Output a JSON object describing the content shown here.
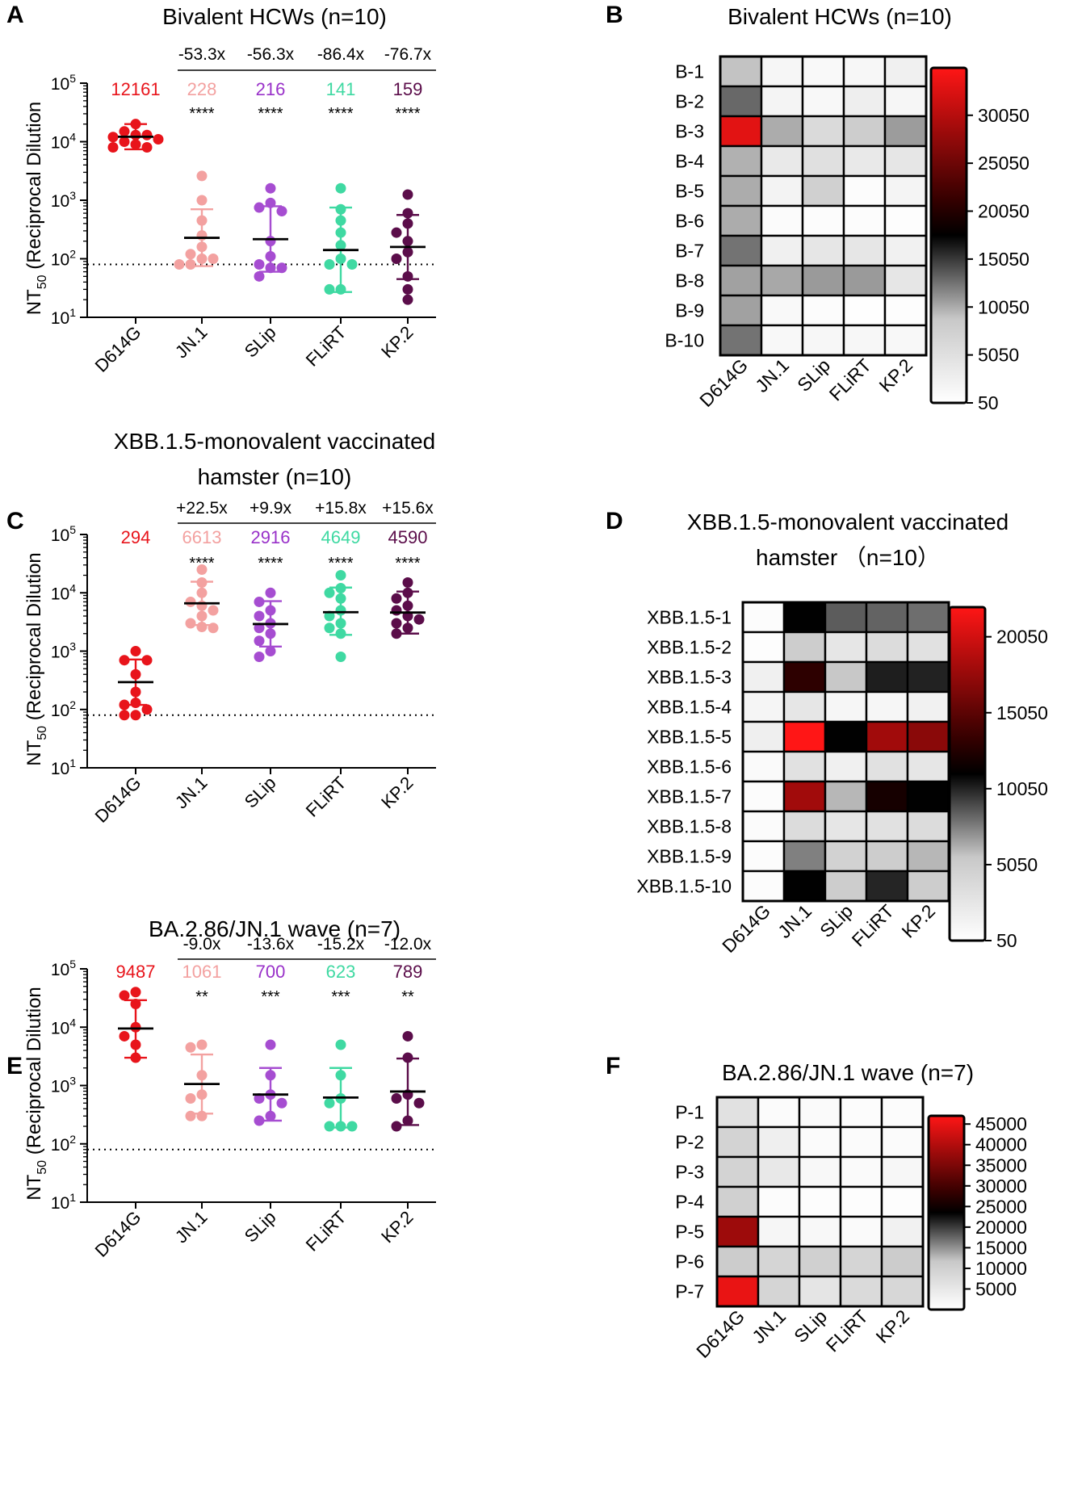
{
  "chart_data": [
    {
      "panel": "A",
      "type": "scatter",
      "title": "Bivalent HCWs (n=10)",
      "ylabel_main": "NT",
      "ylabel_sub": "50",
      "ylabel_rest": " (Reciprocal Dilution",
      "yscale": "log10",
      "ylim": [
        10,
        100000
      ],
      "ytick_exponents": [
        "1",
        "2",
        "3",
        "4",
        "5"
      ],
      "ytick_base": "10",
      "limit_of_detection": 80,
      "categories": [
        "D614G",
        "JN.1",
        "SLip",
        "FLiRT",
        "KP.2"
      ],
      "colors": [
        "#e8141b",
        "#f3a1a0",
        "#a64dd1",
        "#3fd9a2",
        "#5b0d4a"
      ],
      "label_colors": [
        "#e8141b",
        "#f3a1a0",
        "#9931c9",
        "#3fd9a2",
        "#5b0d4a"
      ],
      "gmt_labels": [
        "12161",
        "228",
        "216",
        "141",
        "159"
      ],
      "significance": [
        "",
        "****",
        "****",
        "****",
        "****"
      ],
      "fold_changes": [
        "-53.3x",
        "-56.3x",
        "-86.4x",
        "-76.7x"
      ],
      "gmt": [
        12161,
        228,
        216,
        141,
        159
      ],
      "error_low": [
        7400,
        75,
        60,
        27,
        45
      ],
      "error_high": [
        20000,
        700,
        790,
        750,
        560
      ],
      "values": [
        [
          20000,
          15000,
          13000,
          13000,
          12000,
          11000,
          10000,
          9000,
          8000,
          8000
        ],
        [
          2600,
          1000,
          450,
          250,
          160,
          120,
          100,
          100,
          80,
          80
        ],
        [
          1600,
          900,
          750,
          650,
          200,
          110,
          80,
          70,
          70,
          50
        ],
        [
          1600,
          700,
          450,
          280,
          170,
          100,
          80,
          80,
          30,
          30
        ],
        [
          1250,
          600,
          400,
          280,
          200,
          130,
          100,
          50,
          30,
          20
        ]
      ]
    },
    {
      "panel": "B",
      "type": "heatmap",
      "title": "Bivalent HCWs (n=10)",
      "rows": [
        "B-1",
        "B-2",
        "B-3",
        "B-4",
        "B-5",
        "B-6",
        "B-7",
        "B-8",
        "B-9",
        "B-10"
      ],
      "columns": [
        "D614G",
        "JN.1",
        "SLip",
        "FLiRT",
        "KP.2"
      ],
      "colorbar_ticks": [
        "30050",
        "25050",
        "20050",
        "15050",
        "10050",
        "5050",
        "50"
      ],
      "colorbar_tick_values": [
        30050,
        25050,
        20050,
        15050,
        10050,
        5050,
        50
      ],
      "colorbar_range": [
        50,
        35000
      ],
      "cell_values": [
        [
          9000,
          1500,
          1000,
          1400,
          2500
        ],
        [
          13000,
          1800,
          1200,
          2700,
          1500
        ],
        [
          33000,
          10000,
          6000,
          8000,
          10700
        ],
        [
          9800,
          3500,
          5000,
          3500,
          4000
        ],
        [
          10000,
          2000,
          7500,
          500,
          1800
        ],
        [
          10000,
          700,
          600,
          500,
          300
        ],
        [
          12500,
          2500,
          4000,
          4000,
          2200
        ],
        [
          10500,
          10200,
          10800,
          10800,
          4000
        ],
        [
          10500,
          1000,
          500,
          200,
          300
        ],
        [
          12500,
          1200,
          1300,
          1300,
          1100
        ]
      ]
    },
    {
      "panel": "C",
      "type": "scatter",
      "title_line1": "XBB.1.5-monovalent vaccinated",
      "title_line2": "hamster (n=10)",
      "ylabel_main": "NT",
      "ylabel_sub": "50",
      "ylabel_rest": " (Reciprocal Dilution",
      "yscale": "log10",
      "ylim": [
        10,
        100000
      ],
      "ytick_exponents": [
        "1",
        "2",
        "3",
        "4",
        "5"
      ],
      "ytick_base": "10",
      "limit_of_detection": 80,
      "categories": [
        "D614G",
        "JN.1",
        "SLip",
        "FLiRT",
        "KP.2"
      ],
      "colors": [
        "#e8141b",
        "#f3a1a0",
        "#a64dd1",
        "#3fd9a2",
        "#5b0d4a"
      ],
      "label_colors": [
        "#e8141b",
        "#f3a1a0",
        "#9931c9",
        "#3fd9a2",
        "#5b0d4a"
      ],
      "gmt_labels": [
        "294",
        "6613",
        "2916",
        "4649",
        "4590"
      ],
      "significance": [
        "",
        "****",
        "****",
        "****",
        "****"
      ],
      "fold_changes": [
        "+22.5x",
        "+9.9x",
        "+15.8x",
        "+15.6x"
      ],
      "gmt": [
        294,
        6613,
        2916,
        4649,
        4590
      ],
      "error_low": [
        120,
        2800,
        1200,
        1900,
        2000
      ],
      "error_high": [
        720,
        15500,
        7200,
        12300,
        10500
      ],
      "values": [
        [
          1000,
          700,
          700,
          400,
          200,
          130,
          120,
          100,
          80,
          80
        ],
        [
          25000,
          15000,
          10000,
          7000,
          6000,
          5000,
          4000,
          3000,
          2600,
          2500
        ],
        [
          10000,
          7000,
          5000,
          4000,
          3000,
          2500,
          2000,
          1500,
          1000,
          800
        ],
        [
          20000,
          12000,
          10000,
          8000,
          5000,
          4000,
          3000,
          2500,
          2000,
          800
        ],
        [
          15000,
          10000,
          8000,
          6000,
          5000,
          4000,
          3500,
          3000,
          2500,
          2000
        ]
      ]
    },
    {
      "panel": "D",
      "type": "heatmap",
      "title_line1": "XBB.1.5-monovalent vaccinated",
      "title_line2": "hamster （n=10）",
      "rows": [
        "XBB.1.5-1",
        "XBB.1.5-2",
        "XBB.1.5-3",
        "XBB.1.5-4",
        "XBB.1.5-5",
        "XBB.1.5-6",
        "XBB.1.5-7",
        "XBB.1.5-8",
        "XBB.1.5-9",
        "XBB.1.5-10"
      ],
      "columns": [
        "D614G",
        "JN.1",
        "SLip",
        "FLiRT",
        "KP.2"
      ],
      "colorbar_ticks": [
        "20050",
        "15050",
        "10050",
        "5050",
        "50"
      ],
      "colorbar_tick_values": [
        20050,
        15050,
        10050,
        5050,
        50
      ],
      "colorbar_range": [
        50,
        22000
      ],
      "cell_values": [
        [
          300,
          11000,
          8500,
          8300,
          8000
        ],
        [
          200,
          5000,
          2500,
          3500,
          3000
        ],
        [
          1500,
          13000,
          5500,
          10200,
          10100
        ],
        [
          1000,
          2500,
          900,
          900,
          1400
        ],
        [
          1600,
          22000,
          11000,
          18000,
          17000
        ],
        [
          500,
          3000,
          1500,
          3000,
          2500
        ],
        [
          300,
          18000,
          6000,
          12000,
          11000
        ],
        [
          400,
          3500,
          2500,
          3000,
          3500
        ],
        [
          300,
          7500,
          4500,
          5000,
          6000
        ],
        [
          300,
          11000,
          5000,
          10000,
          5000
        ]
      ]
    },
    {
      "panel": "E",
      "type": "scatter",
      "title": "BA.2.86/JN.1 wave (n=7)",
      "ylabel_main": "NT",
      "ylabel_sub": "50",
      "ylabel_rest": " (Reciprocal Dilution",
      "yscale": "log10",
      "ylim": [
        10,
        100000
      ],
      "ytick_exponents": [
        "1",
        "2",
        "3",
        "4",
        "5"
      ],
      "ytick_base": "10",
      "limit_of_detection": 80,
      "categories": [
        "D614G",
        "JN.1",
        "SLip",
        "FLiRT",
        "KP.2"
      ],
      "colors": [
        "#e8141b",
        "#f3a1a0",
        "#a64dd1",
        "#3fd9a2",
        "#5b0d4a"
      ],
      "label_colors": [
        "#e8141b",
        "#f3a1a0",
        "#9931c9",
        "#3fd9a2",
        "#5b0d4a"
      ],
      "gmt_labels": [
        "9487",
        "1061",
        "700",
        "623",
        "789"
      ],
      "significance": [
        "",
        "**",
        "***",
        "***",
        "**"
      ],
      "fold_changes": [
        "-9.0x",
        "-13.6x",
        "-15.2x",
        "-12.0x"
      ],
      "gmt": [
        9487,
        1061,
        700,
        623,
        789
      ],
      "error_low": [
        3000,
        330,
        250,
        190,
        210
      ],
      "error_high": [
        29000,
        3400,
        2000,
        2000,
        2900
      ],
      "values": [
        [
          40000,
          35000,
          25000,
          10000,
          7000,
          5000,
          3000
        ],
        [
          5000,
          4500,
          1500,
          700,
          600,
          300,
          300
        ],
        [
          5000,
          1500,
          700,
          600,
          500,
          300,
          250
        ],
        [
          5000,
          1500,
          600,
          500,
          200,
          200,
          200
        ],
        [
          7000,
          3000,
          700,
          600,
          500,
          250,
          200
        ]
      ]
    },
    {
      "panel": "F",
      "type": "heatmap",
      "title": "BA.2.86/JN.1 wave (n=7)",
      "rows": [
        "P-1",
        "P-2",
        "P-3",
        "P-4",
        "P-5",
        "P-6",
        "P-7"
      ],
      "columns": [
        "D614G",
        "JN.1",
        "SLip",
        "FLiRT",
        "KP.2"
      ],
      "colorbar_ticks": [
        "45000",
        "40000",
        "35000",
        "30000",
        "25000",
        "20000",
        "15000",
        "10000",
        "5000"
      ],
      "colorbar_tick_values": [
        45000,
        40000,
        35000,
        30000,
        25000,
        20000,
        15000,
        10000,
        5000
      ],
      "colorbar_range": [
        0,
        47000
      ],
      "cell_values": [
        [
          6500,
          800,
          1000,
          700,
          600
        ],
        [
          9500,
          3500,
          800,
          800,
          800
        ],
        [
          9500,
          5000,
          1500,
          1000,
          1800
        ],
        [
          10000,
          600,
          400,
          400,
          500
        ],
        [
          38000,
          2000,
          1500,
          1000,
          3000
        ],
        [
          11000,
          9000,
          10000,
          9000,
          11000
        ],
        [
          45000,
          9000,
          5500,
          8000,
          8500
        ]
      ]
    }
  ],
  "panel_letters": [
    "A",
    "B",
    "C",
    "D",
    "E",
    "F"
  ]
}
